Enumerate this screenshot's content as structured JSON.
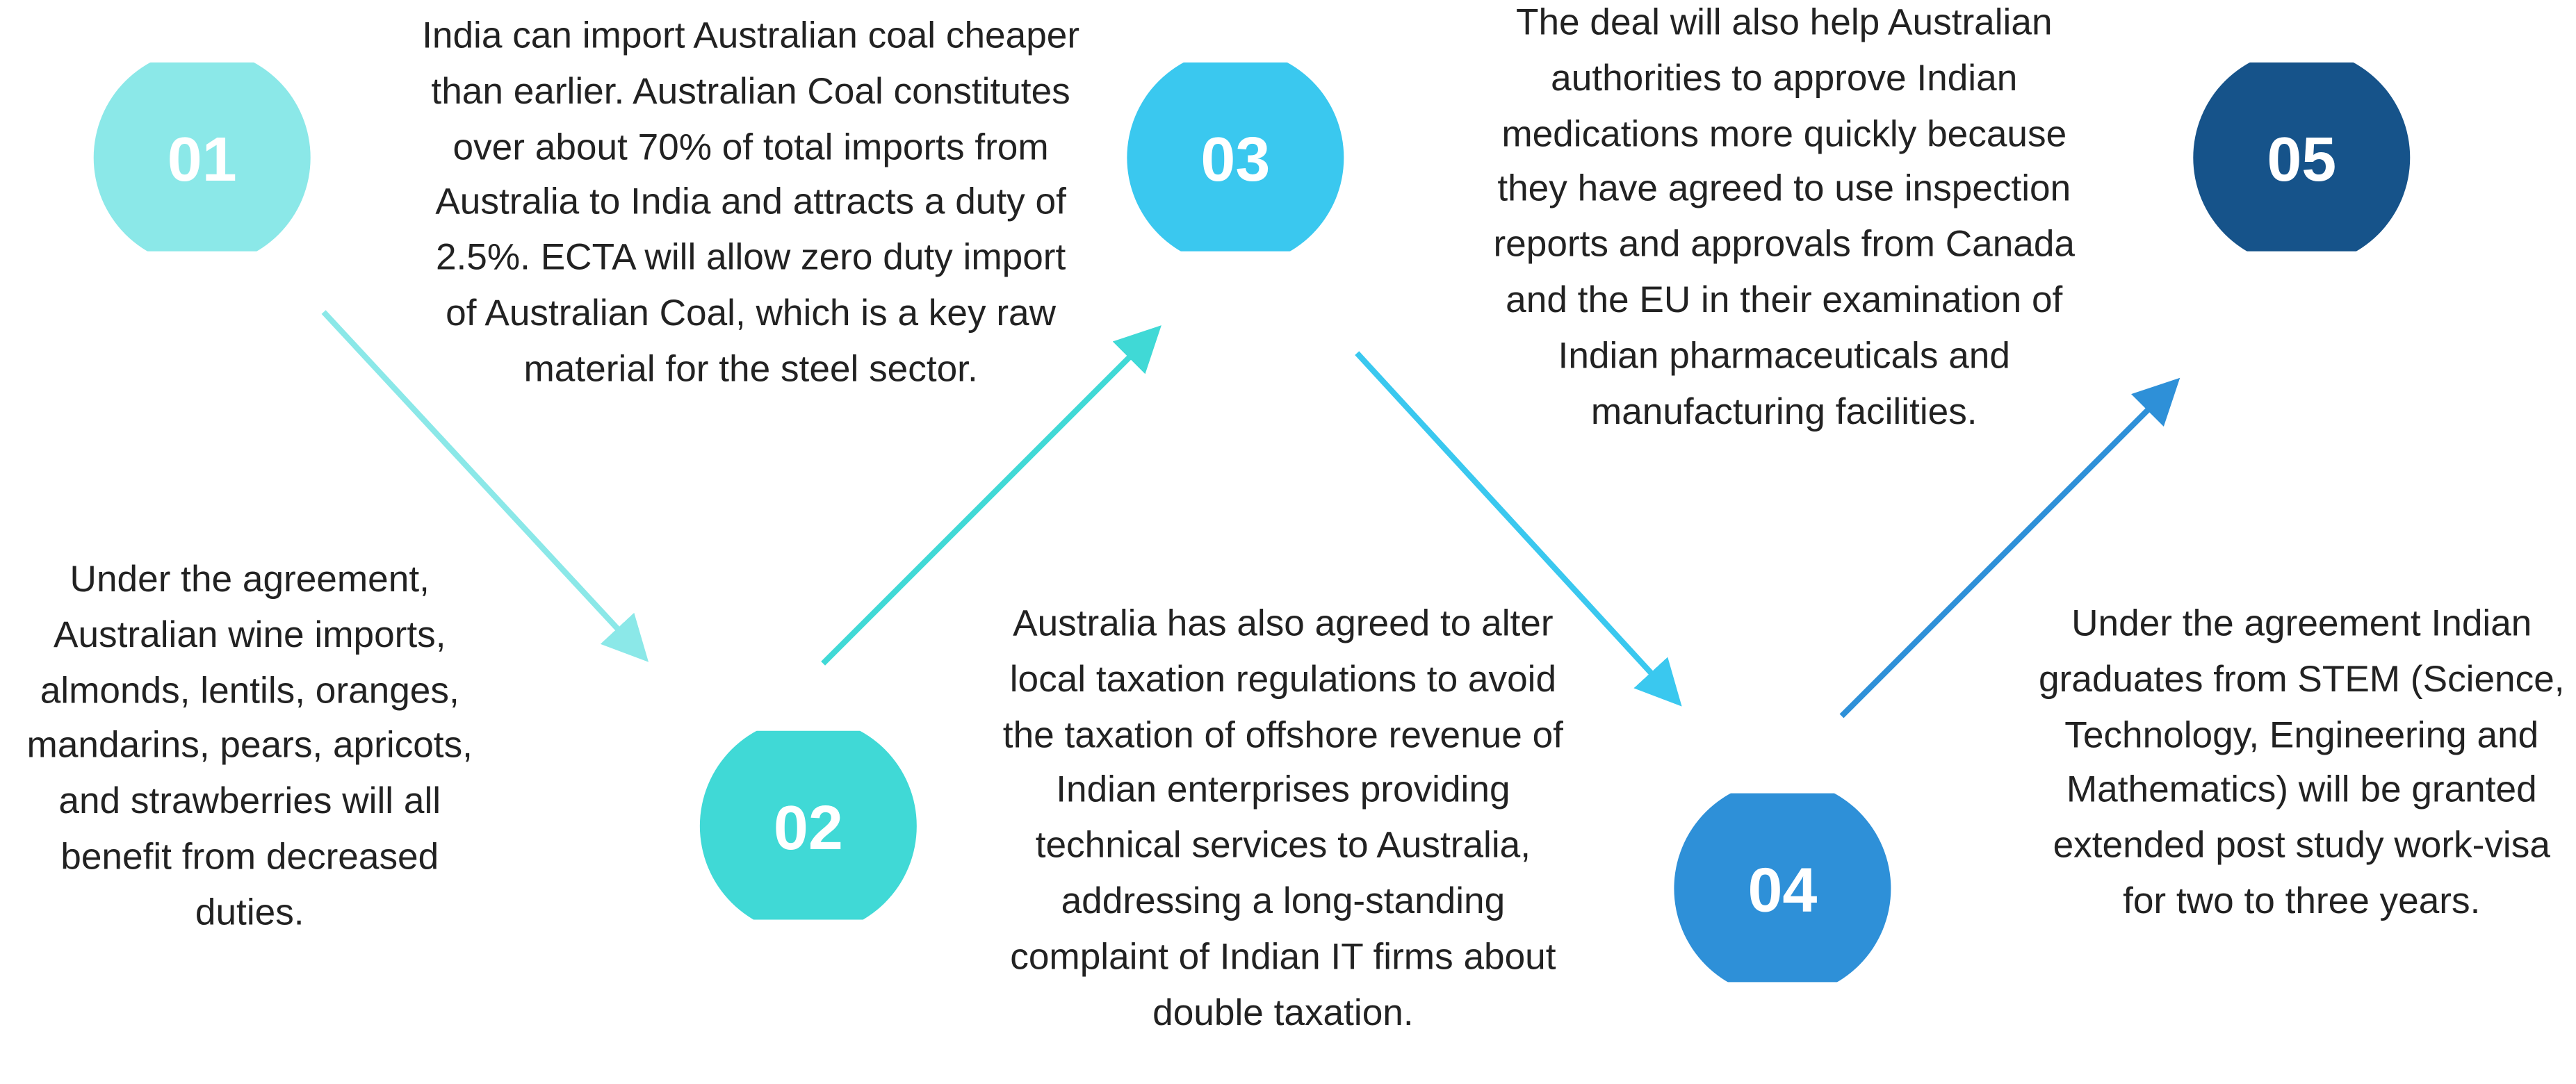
{
  "steps": [
    {
      "number": "01"
    },
    {
      "number": "02"
    },
    {
      "number": "03"
    },
    {
      "number": "04"
    },
    {
      "number": "05"
    }
  ],
  "notes": [
    "Under the agreement, Australian wine imports, almonds, lentils, oranges, mandarins, pears, apricots, and strawberries will all benefit from decreased duties.",
    "India can import Australian coal cheaper than earlier. Australian Coal constitutes over about 70% of total imports from Australia to India and attracts a duty of 2.5%. ECTA will allow zero duty import of Australian Coal, which is a key raw material for the steel sector.",
    "Australia has also agreed to alter local taxation regulations to avoid the taxation of offshore revenue of Indian enterprises providing technical services to Australia, addressing a long-standing complaint of Indian IT firms about double taxation.",
    "The deal will also help Australian authorities to approve Indian medications more quickly because they have agreed to use inspection reports and approvals from Canada and the EU in their examination of Indian pharmaceuticals and manufacturing facilities.",
    "Under the agreement Indian graduates from STEM (Science, Technology, Engineering and Mathematics) will be granted  extended post study work-visa for two to three years."
  ]
}
